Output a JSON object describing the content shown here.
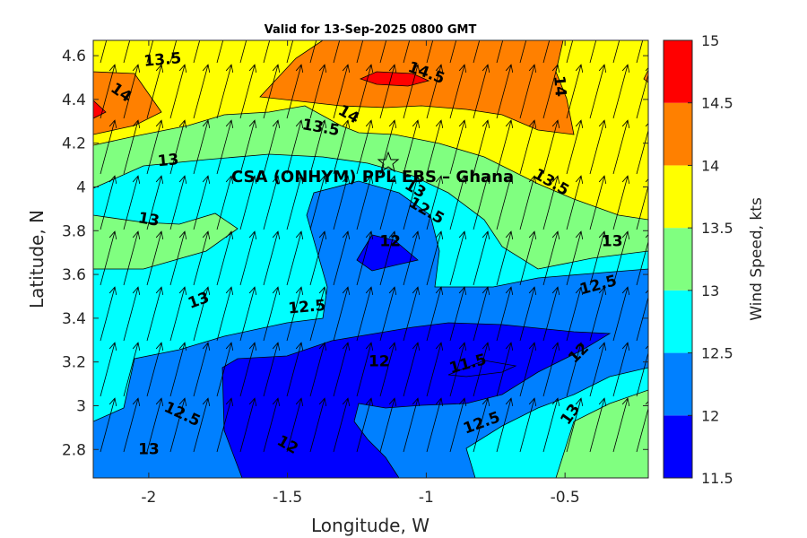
{
  "chart_data": {
    "type": "contour",
    "title": "Valid for 13-Sep-2025 0800 GMT",
    "xlabel": "Longitude, W",
    "ylabel": "Latitude, N",
    "xlim": [
      -2.2,
      -0.2
    ],
    "ylim": [
      2.67,
      4.67
    ],
    "x_ticks": [
      -2,
      -1.5,
      -1,
      -0.5
    ],
    "x_tick_labels": [
      "-2",
      "-1.5",
      "-1",
      "-0.5"
    ],
    "y_ticks": [
      2.8,
      3.0,
      3.2,
      3.4,
      3.6,
      3.8,
      4.0,
      4.2,
      4.4,
      4.6
    ],
    "y_tick_labels": [
      "2.8",
      "3",
      "3.2",
      "3.4",
      "3.6",
      "3.8",
      "4",
      "4.2",
      "4.4",
      "4.6"
    ],
    "grid": false,
    "colorbar": {
      "label": "Wind Speed, kts",
      "levels": [
        11.5,
        12,
        12.5,
        13,
        13.5,
        14,
        14.5,
        15
      ],
      "tick_labels": [
        "11.5",
        "12",
        "12.5",
        "13",
        "13.5",
        "14",
        "14.5",
        "15"
      ],
      "colors": [
        "#0000ff",
        "#0080ff",
        "#00ffff",
        "#80ff80",
        "#ffff00",
        "#ff8000",
        "#ff0000"
      ]
    },
    "contour_labels": [
      {
        "text": "13.5",
        "lon": -1.95,
        "lat": 4.58,
        "angle": -5
      },
      {
        "text": "14",
        "lon": -2.1,
        "lat": 4.43,
        "angle": 35
      },
      {
        "text": "14.5",
        "lon": -1.0,
        "lat": 4.52,
        "angle": 20
      },
      {
        "text": "14",
        "lon": -0.52,
        "lat": 4.46,
        "angle": 85
      },
      {
        "text": "14",
        "lon": -1.28,
        "lat": 4.33,
        "angle": 30
      },
      {
        "text": "13.5",
        "lon": -1.38,
        "lat": 4.27,
        "angle": 10
      },
      {
        "text": "13",
        "lon": -1.93,
        "lat": 4.12,
        "angle": -5
      },
      {
        "text": "13.5",
        "lon": -0.55,
        "lat": 4.02,
        "angle": 30
      },
      {
        "text": "13",
        "lon": -1.04,
        "lat": 3.99,
        "angle": 30
      },
      {
        "text": "12.5",
        "lon": -1.0,
        "lat": 3.89,
        "angle": 30
      },
      {
        "text": "13",
        "lon": -2.0,
        "lat": 3.85,
        "angle": 10
      },
      {
        "text": "12",
        "lon": -1.13,
        "lat": 3.75,
        "angle": 0
      },
      {
        "text": "13",
        "lon": -0.33,
        "lat": 3.75,
        "angle": 0
      },
      {
        "text": "12.5",
        "lon": -0.38,
        "lat": 3.55,
        "angle": -15
      },
      {
        "text": "13",
        "lon": -1.82,
        "lat": 3.48,
        "angle": -20
      },
      {
        "text": "12.5",
        "lon": -1.43,
        "lat": 3.45,
        "angle": -5
      },
      {
        "text": "12",
        "lon": -1.17,
        "lat": 3.2,
        "angle": 0
      },
      {
        "text": "11.5",
        "lon": -0.85,
        "lat": 3.19,
        "angle": -15
      },
      {
        "text": "12",
        "lon": -0.45,
        "lat": 3.24,
        "angle": -45
      },
      {
        "text": "12.5",
        "lon": -1.88,
        "lat": 2.96,
        "angle": 25
      },
      {
        "text": "12",
        "lon": -1.5,
        "lat": 2.82,
        "angle": 30
      },
      {
        "text": "12.5",
        "lon": -0.8,
        "lat": 2.92,
        "angle": -20
      },
      {
        "text": "13",
        "lon": -0.48,
        "lat": 2.96,
        "angle": -55
      },
      {
        "text": "13",
        "lon": -2.0,
        "lat": 2.8,
        "angle": 0
      }
    ],
    "annotation": {
      "text": "CSA (ONHYM) PPL EBS  – Ghana",
      "marker": "star",
      "lon": -1.1,
      "lat": 4.1
    },
    "wind_vectors": {
      "direction_to_deg": 15,
      "description": "arrows pointing north-northeast across grid"
    }
  }
}
